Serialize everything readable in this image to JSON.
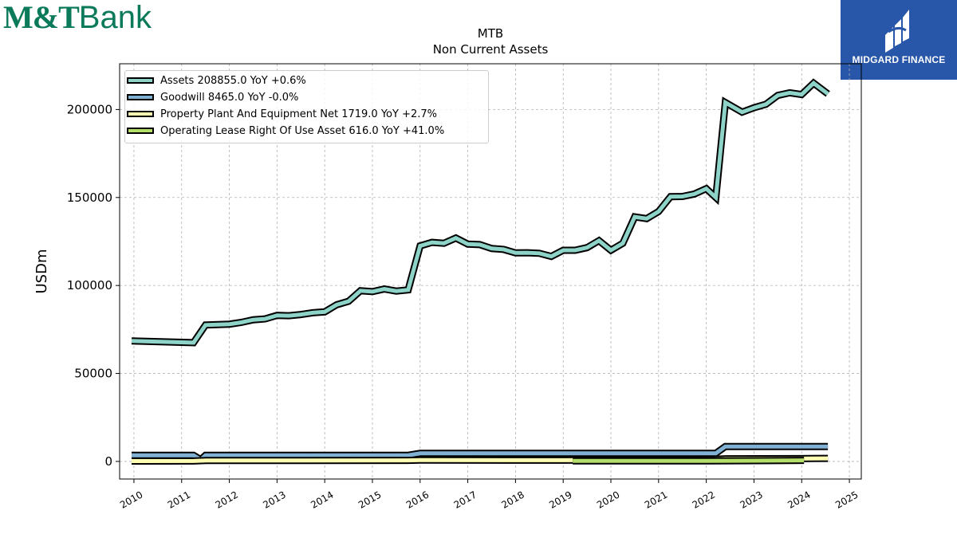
{
  "branding": {
    "bank_logo_strong": "M&T",
    "bank_logo_light": "Bank",
    "badge_text": "MIDGARD FINANCE"
  },
  "colors": {
    "assets": "#8dd3c7",
    "goodwill": "#80b1d3",
    "ppe": "#ffffb3",
    "lease": "#b3de69",
    "bank_green": "#0b7a5a",
    "badge_blue": "#2856a8"
  },
  "chart_data": {
    "type": "line",
    "title": "MTB",
    "subtitle": "Non Current  Assets",
    "ylabel": "USDm",
    "xlabel": "",
    "xlim": [
      2009.7,
      2025.25
    ],
    "ylim": [
      -10000,
      226000
    ],
    "yticks": [
      0,
      50000,
      100000,
      150000,
      200000
    ],
    "xticks": [
      2010,
      2011,
      2012,
      2013,
      2014,
      2015,
      2016,
      2017,
      2018,
      2019,
      2020,
      2021,
      2022,
      2023,
      2024,
      2025
    ],
    "grid": true,
    "legend_position": "top-left",
    "series": [
      {
        "name": "Assets",
        "legend": "Assets  208855.0 YoY +0.6%",
        "color": "#8dd3c7",
        "points": [
          [
            2009.95,
            68500
          ],
          [
            2011.25,
            67500
          ],
          [
            2011.5,
            77500
          ],
          [
            2012.0,
            78000
          ],
          [
            2012.25,
            79000
          ],
          [
            2012.5,
            80500
          ],
          [
            2012.75,
            81000
          ],
          [
            2013.0,
            83000
          ],
          [
            2013.25,
            82800
          ],
          [
            2013.5,
            83500
          ],
          [
            2013.75,
            84500
          ],
          [
            2014.0,
            85000
          ],
          [
            2014.25,
            89000
          ],
          [
            2014.5,
            91000
          ],
          [
            2014.75,
            97000
          ],
          [
            2015.0,
            96500
          ],
          [
            2015.25,
            98000
          ],
          [
            2015.5,
            96800
          ],
          [
            2015.75,
            97500
          ],
          [
            2016.0,
            122500
          ],
          [
            2016.25,
            124500
          ],
          [
            2016.5,
            124000
          ],
          [
            2016.75,
            127000
          ],
          [
            2017.0,
            123500
          ],
          [
            2017.25,
            123200
          ],
          [
            2017.5,
            121000
          ],
          [
            2017.75,
            120500
          ],
          [
            2018.0,
            118500
          ],
          [
            2018.25,
            118600
          ],
          [
            2018.5,
            118300
          ],
          [
            2018.75,
            116500
          ],
          [
            2019.0,
            120000
          ],
          [
            2019.25,
            120000
          ],
          [
            2019.5,
            121500
          ],
          [
            2019.75,
            125500
          ],
          [
            2020.0,
            120000
          ],
          [
            2020.25,
            124000
          ],
          [
            2020.5,
            139000
          ],
          [
            2020.75,
            138000
          ],
          [
            2021.0,
            142000
          ],
          [
            2021.25,
            150500
          ],
          [
            2021.5,
            150600
          ],
          [
            2021.75,
            152000
          ],
          [
            2022.0,
            155000
          ],
          [
            2022.2,
            150000
          ],
          [
            2022.4,
            204000
          ],
          [
            2022.75,
            198500
          ],
          [
            2023.0,
            201000
          ],
          [
            2023.25,
            203000
          ],
          [
            2023.5,
            208000
          ],
          [
            2023.75,
            209500
          ],
          [
            2024.0,
            208500
          ],
          [
            2024.25,
            215000
          ],
          [
            2024.55,
            208855
          ]
        ]
      },
      {
        "name": "Goodwill",
        "legend": "Goodwill  8465.0 YoY -0.0%",
        "color": "#80b1d3",
        "points": [
          [
            2009.95,
            3500
          ],
          [
            2011.25,
            3500
          ],
          [
            2011.4,
            1000
          ],
          [
            2011.5,
            3500
          ],
          [
            2015.75,
            3500
          ],
          [
            2016.0,
            4600
          ],
          [
            2022.2,
            4600
          ],
          [
            2022.4,
            8500
          ],
          [
            2024.55,
            8465
          ]
        ]
      },
      {
        "name": "Property Plant And Equipment Net",
        "legend": "Property Plant And Equipment Net  1719.0 YoY +2.7%",
        "color": "#ffffb3",
        "points": [
          [
            2009.95,
            200
          ],
          [
            2011.25,
            250
          ],
          [
            2011.5,
            500
          ],
          [
            2015.75,
            600
          ],
          [
            2016.0,
            750
          ],
          [
            2019.0,
            700
          ],
          [
            2022.2,
            1200
          ],
          [
            2022.4,
            1500
          ],
          [
            2024.0,
            1600
          ],
          [
            2024.55,
            1719
          ]
        ]
      },
      {
        "name": "Operating Lease Right Of Use Asset",
        "legend": "Operating Lease Right Of Use Asset  616.0 YoY +41.0%",
        "color": "#b3de69",
        "points": [
          [
            2019.2,
            300
          ],
          [
            2022.0,
            300
          ],
          [
            2023.0,
            400
          ],
          [
            2024.05,
            616
          ]
        ]
      }
    ]
  }
}
